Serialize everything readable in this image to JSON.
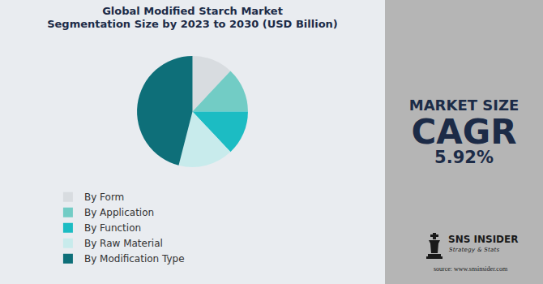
{
  "chart_data": {
    "type": "pie",
    "title": "Global Modified Starch Market\nSegmentation Size by 2023 to 2030 (USD Billion)",
    "categories": [
      "By Form",
      "By Application",
      "By Function",
      "By Raw Material",
      "By Modification Type"
    ],
    "values": [
      12,
      13,
      13,
      16,
      46
    ],
    "colors": [
      "#d8dce0",
      "#72ccc5",
      "#1cbcc3",
      "#c8ebec",
      "#0e6f79"
    ],
    "legend": "bottom"
  },
  "side_panel": {
    "heading": "MARKET SIZE",
    "metric": "CAGR",
    "metric_value": "5.92%",
    "brand": "SNS INSIDER",
    "tagline": "Strategy & Stats",
    "source": "source: www.snsinsider.com"
  }
}
